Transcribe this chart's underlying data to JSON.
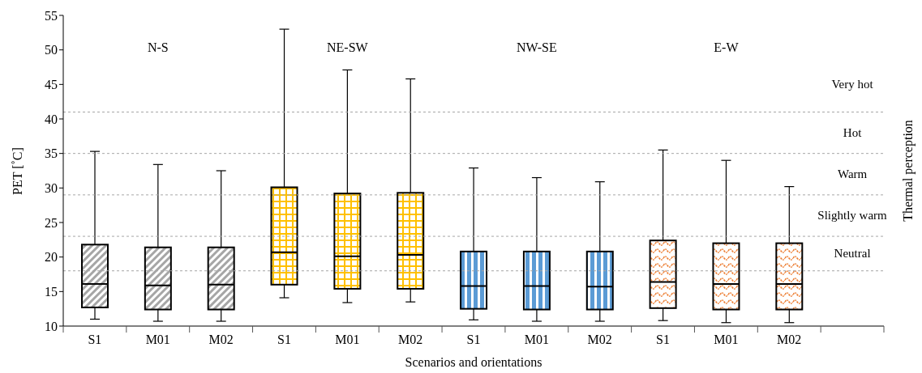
{
  "chart_data": {
    "type": "box",
    "xlabel": "Scenarios and orientations",
    "ylabel": "PET [˚C]",
    "y2label": "Thermal perception",
    "categories": [
      "S1",
      "M01",
      "M02",
      "S1",
      "M01",
      "M02",
      "S1",
      "M01",
      "M02",
      "S1",
      "M01",
      "M02",
      null
    ],
    "ylim": [
      10,
      55
    ],
    "yticks": [
      10,
      15,
      20,
      25,
      30,
      35,
      40,
      45,
      50,
      55
    ],
    "grid": false,
    "series": [
      {
        "color": "#a6a6a6",
        "boxes": [
          {
            "low": 11.0,
            "q1": 12.7,
            "median": 16.1,
            "q3": 21.8,
            "high": 35.3
          },
          {
            "low": 10.7,
            "q1": 12.4,
            "median": 15.9,
            "q3": 21.4,
            "high": 33.4
          },
          {
            "low": 10.7,
            "q1": 12.4,
            "median": 16.0,
            "q3": 21.4,
            "high": 32.5
          },
          null,
          null,
          null,
          null,
          null,
          null,
          null,
          null,
          null,
          null
        ]
      },
      {
        "color": "#ffc000",
        "boxes": [
          null,
          null,
          null,
          {
            "low": 14.1,
            "q1": 16.0,
            "median": 20.7,
            "q3": 30.1,
            "high": 53.0
          },
          {
            "low": 13.4,
            "q1": 15.4,
            "median": 20.1,
            "q3": 29.2,
            "high": 47.1
          },
          {
            "low": 13.5,
            "q1": 15.4,
            "median": 20.3,
            "q3": 29.3,
            "high": 45.8
          },
          null,
          null,
          null,
          null,
          null,
          null,
          null
        ]
      },
      {
        "color": "#5b9bd5",
        "boxes": [
          null,
          null,
          null,
          null,
          null,
          null,
          {
            "low": 10.9,
            "q1": 12.5,
            "median": 15.8,
            "q3": 20.8,
            "high": 32.9
          },
          {
            "low": 10.7,
            "q1": 12.4,
            "median": 15.8,
            "q3": 20.8,
            "high": 31.5
          },
          {
            "low": 10.7,
            "q1": 12.4,
            "median": 15.7,
            "q3": 20.8,
            "high": 30.9
          },
          null,
          null,
          null,
          null
        ]
      },
      {
        "color": "#ed7d31",
        "boxes": [
          null,
          null,
          null,
          null,
          null,
          null,
          null,
          null,
          null,
          {
            "low": 10.8,
            "q1": 12.6,
            "median": 16.4,
            "q3": 22.4,
            "high": 35.5
          },
          {
            "low": 10.5,
            "q1": 12.4,
            "median": 16.1,
            "q3": 22.0,
            "high": 34.0
          },
          {
            "low": 10.5,
            "q1": 12.4,
            "median": 16.1,
            "q3": 22.0,
            "high": 30.2
          },
          null
        ]
      }
    ],
    "ref_lines": [
      {
        "axis": "y",
        "value": 18,
        "label": "Neutral",
        "color": "#a6a6a6",
        "line_style": "dashed"
      },
      {
        "axis": "y",
        "value": 23,
        "label": "Slightly warm",
        "color": "#a6a6a6",
        "line_style": "dashed"
      },
      {
        "axis": "y",
        "value": 29,
        "label": "Warm",
        "color": "#a6a6a6",
        "line_style": "dashed"
      },
      {
        "axis": "y",
        "value": 35,
        "label": "Hot",
        "color": "#a6a6a6",
        "line_style": "dashed"
      },
      {
        "axis": "y",
        "value": 41,
        "label": "Very hot",
        "color": "#a6a6a6",
        "line_style": "dashed"
      }
    ],
    "annotations": [
      "N-S",
      "NE-SW",
      "NW-SE",
      "E-W"
    ]
  }
}
